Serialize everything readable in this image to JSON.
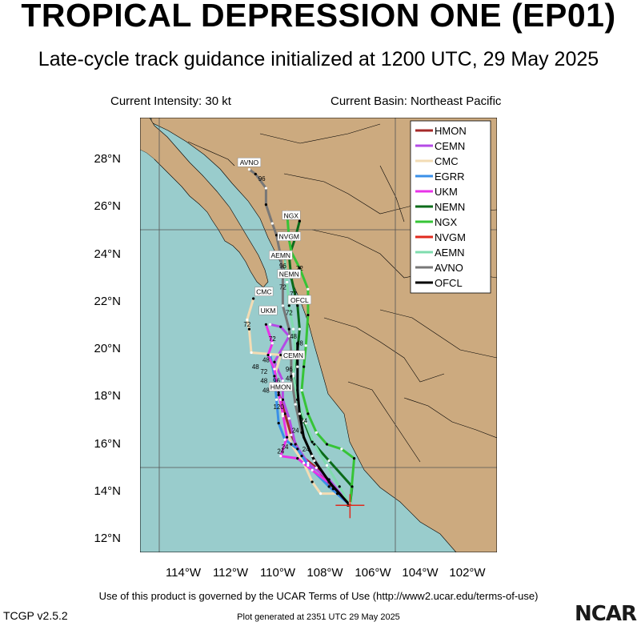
{
  "header": {
    "title": "TROPICAL DEPRESSION ONE (EP01)",
    "subtitle": "Late-cycle track guidance initialized at 1200 UTC, 29 May 2025",
    "intensity": "Current Intensity: 30 kt",
    "basin": "Current Basin: Northeast Pacific"
  },
  "map": {
    "lon_range": [
      -116,
      -99
    ],
    "lat_range": [
      11.5,
      30
    ],
    "lat_ticks": [
      "12°N",
      "14°N",
      "16°N",
      "18°N",
      "20°N",
      "22°N",
      "24°N",
      "26°N",
      "28°N"
    ],
    "lon_ticks": [
      "114°W",
      "112°W",
      "110°W",
      "108°W",
      "106°W",
      "104°W",
      "102°W"
    ],
    "ocean_color": "#99cccc",
    "land_color": "#ccaa7f",
    "gridlines": true,
    "storm_position": {
      "lon": -106.0,
      "lat": 13.5,
      "label": "current position marker"
    }
  },
  "legend": {
    "placement": "top-right",
    "items": [
      {
        "name": "HMON",
        "color": "#a52a2a"
      },
      {
        "name": "CEMN",
        "color": "#b44be6"
      },
      {
        "name": "CMC",
        "color": "#f3dcb4"
      },
      {
        "name": "EGRR",
        "color": "#3a8fe8"
      },
      {
        "name": "UKM",
        "color": "#e833e8"
      },
      {
        "name": "NEMN",
        "color": "#0b6b1a"
      },
      {
        "name": "NGX",
        "color": "#36c436"
      },
      {
        "name": "NVGM",
        "color": "#e02a1e"
      },
      {
        "name": "AEMN",
        "color": "#7fdcae"
      },
      {
        "name": "AVNO",
        "color": "#777777"
      },
      {
        "name": "OFCL",
        "color": "#000000"
      }
    ]
  },
  "tracks": [
    {
      "name": "HMON",
      "color": "#a52a2a",
      "pts": [
        [
          -106.0,
          13.5
        ],
        [
          -106.8,
          14.2
        ],
        [
          -107.6,
          15.1
        ],
        [
          -108.3,
          15.6
        ],
        [
          -108.8,
          16.5
        ],
        [
          -109.1,
          17.4
        ],
        [
          -109.3,
          18.0
        ],
        [
          -109.5,
          18.6
        ]
      ]
    },
    {
      "name": "CEMN",
      "color": "#b44be6",
      "pts": [
        [
          -106.0,
          13.5
        ],
        [
          -107.0,
          14.6
        ],
        [
          -108.0,
          15.3
        ],
        [
          -108.6,
          16.1
        ],
        [
          -108.9,
          17.2
        ],
        [
          -109.2,
          18.0
        ],
        [
          -109.2,
          18.8
        ],
        [
          -109.6,
          19.6
        ],
        [
          -108.9,
          20.7
        ],
        [
          -109.3,
          21.1
        ],
        [
          -109.8,
          21.2
        ]
      ]
    },
    {
      "name": "CMC",
      "color": "#f3dcb4",
      "pts": [
        [
          -106.0,
          13.5
        ],
        [
          -106.6,
          14.0
        ],
        [
          -107.4,
          14.0
        ],
        [
          -107.8,
          14.5
        ],
        [
          -108.2,
          15.3
        ],
        [
          -108.8,
          16.1
        ],
        [
          -109.2,
          17.3
        ],
        [
          -109.4,
          18.2
        ],
        [
          -109.6,
          19.0
        ],
        [
          -109.3,
          19.9
        ],
        [
          -110.7,
          20.0
        ],
        [
          -110.8,
          21.0
        ],
        [
          -110.9,
          21.4
        ],
        [
          -110.6,
          22.3
        ]
      ]
    },
    {
      "name": "EGRR",
      "color": "#3a8fe8",
      "pts": [
        [
          -106.0,
          13.5
        ],
        [
          -107.0,
          14.3
        ],
        [
          -108.0,
          15.2
        ],
        [
          -108.5,
          15.9
        ],
        [
          -109.1,
          16.3
        ],
        [
          -109.4,
          17.0
        ],
        [
          -109.5,
          18.0
        ],
        [
          -109.6,
          19.0
        ],
        [
          -109.8,
          19.9
        ]
      ]
    },
    {
      "name": "UKM",
      "color": "#e833e8",
      "pts": [
        [
          -106.0,
          13.5
        ],
        [
          -106.9,
          14.4
        ],
        [
          -107.8,
          15.0
        ],
        [
          -108.5,
          15.5
        ],
        [
          -109.3,
          15.6
        ],
        [
          -109.0,
          16.4
        ],
        [
          -109.2,
          17.4
        ],
        [
          -109.4,
          18.3
        ],
        [
          -109.6,
          19.3
        ],
        [
          -109.9,
          19.9
        ],
        [
          -109.7,
          20.4
        ],
        [
          -110.0,
          21.2
        ]
      ]
    },
    {
      "name": "NEMN",
      "color": "#0b6b1a",
      "pts": [
        [
          -106.0,
          13.5
        ],
        [
          -105.9,
          14.3
        ],
        [
          -107.0,
          15.4
        ],
        [
          -107.8,
          16.2
        ],
        [
          -108.2,
          17.1
        ],
        [
          -108.5,
          18.0
        ],
        [
          -108.7,
          19.1
        ],
        [
          -108.5,
          20.1
        ],
        [
          -108.4,
          21.0
        ],
        [
          -108.5,
          22.0
        ],
        [
          -108.8,
          23.2
        ],
        [
          -108.9,
          24.1
        ],
        [
          -108.6,
          24.9
        ],
        [
          -108.4,
          25.6
        ]
      ]
    },
    {
      "name": "NGX",
      "color": "#36c436",
      "pts": [
        [
          -106.0,
          13.5
        ],
        [
          -105.8,
          15.5
        ],
        [
          -106.4,
          15.9
        ],
        [
          -107.1,
          16.1
        ],
        [
          -107.6,
          16.6
        ],
        [
          -108.0,
          17.4
        ],
        [
          -108.3,
          18.4
        ],
        [
          -108.2,
          19.4
        ],
        [
          -108.1,
          20.3
        ],
        [
          -108.0,
          21.6
        ],
        [
          -108.0,
          22.7
        ],
        [
          -108.4,
          23.6
        ],
        [
          -108.8,
          24.3
        ],
        [
          -108.9,
          24.8
        ],
        [
          -109.0,
          26.0
        ]
      ]
    },
    {
      "name": "NVGM",
      "color": "#e02a1e",
      "pts": [
        [
          -106.0,
          13.5
        ],
        [
          -106.1,
          13.5
        ],
        [
          -106.0,
          13.6
        ]
      ]
    },
    {
      "name": "AEMN",
      "color": "#7fdcae",
      "pts": [
        [
          -106.0,
          13.5
        ],
        [
          -106.5,
          14.3
        ],
        [
          -107.1,
          15.2
        ],
        [
          -107.7,
          16.1
        ],
        [
          -108.1,
          17.0
        ],
        [
          -108.5,
          18.0
        ],
        [
          -108.7,
          19.0
        ],
        [
          -108.6,
          20.0
        ],
        [
          -108.7,
          21.0
        ],
        [
          -108.9,
          22.0
        ],
        [
          -109.0,
          23.0
        ],
        [
          -109.1,
          24.0
        ]
      ]
    },
    {
      "name": "AVNO",
      "color": "#777777",
      "pts": [
        [
          -106.0,
          13.5
        ],
        [
          -107.0,
          14.5
        ],
        [
          -107.8,
          15.6
        ],
        [
          -108.3,
          16.6
        ],
        [
          -108.6,
          17.8
        ],
        [
          -108.8,
          19.0
        ],
        [
          -108.8,
          20.0
        ],
        [
          -108.9,
          21.0
        ],
        [
          -109.2,
          22.0
        ],
        [
          -109.2,
          23.2
        ],
        [
          -109.3,
          24.1
        ],
        [
          -109.5,
          25.0
        ],
        [
          -109.7,
          25.5
        ],
        [
          -110.0,
          26.3
        ],
        [
          -110.0,
          27.0
        ],
        [
          -110.5,
          27.6
        ],
        [
          -110.8,
          27.8
        ]
      ]
    },
    {
      "name": "OFCL",
      "color": "#000000",
      "pts": [
        [
          -106.0,
          13.5
        ],
        [
          -106.9,
          14.4
        ],
        [
          -107.7,
          15.4
        ],
        [
          -108.2,
          16.4
        ],
        [
          -108.4,
          17.4
        ],
        [
          -108.5,
          18.4
        ],
        [
          -108.5,
          19.4
        ],
        [
          -108.5,
          20.4
        ]
      ]
    }
  ],
  "track_labels": [
    {
      "text": "AVNO",
      "lon": -110.8,
      "lat": 28.05
    },
    {
      "text": "NGX",
      "lon": -108.8,
      "lat": 25.8
    },
    {
      "text": "NVGM",
      "lon": -108.9,
      "lat": 24.9
    },
    {
      "text": "AEMN",
      "lon": -109.3,
      "lat": 24.1
    },
    {
      "text": "NEMN",
      "lon": -108.9,
      "lat": 23.3
    },
    {
      "text": "CMC",
      "lon": -110.1,
      "lat": 22.55
    },
    {
      "text": "OFCL",
      "lon": -108.4,
      "lat": 22.2
    },
    {
      "text": "UKM",
      "lon": -109.9,
      "lat": 21.75
    },
    {
      "text": "CEMN",
      "lon": -108.7,
      "lat": 19.85
    },
    {
      "text": "HMON",
      "lon": -109.3,
      "lat": 18.5
    }
  ],
  "hour_labels": [
    {
      "text": "96",
      "lon": -110.2,
      "lat": 27.3
    },
    {
      "text": "96",
      "lon": -109.2,
      "lat": 23.6
    },
    {
      "text": "72",
      "lon": -108.4,
      "lat": 23.5
    },
    {
      "text": "72",
      "lon": -109.2,
      "lat": 22.7
    },
    {
      "text": "72",
      "lon": -108.7,
      "lat": 22.4
    },
    {
      "text": "72",
      "lon": -108.9,
      "lat": 21.6
    },
    {
      "text": "72",
      "lon": -110.9,
      "lat": 21.1
    },
    {
      "text": "72",
      "lon": -109.7,
      "lat": 20.5
    },
    {
      "text": "48",
      "lon": -108.7,
      "lat": 20.6
    },
    {
      "text": "48",
      "lon": -108.4,
      "lat": 20.3
    },
    {
      "text": "48",
      "lon": -110.0,
      "lat": 19.6
    },
    {
      "text": "48",
      "lon": -110.5,
      "lat": 19.3
    },
    {
      "text": "72",
      "lon": -110.1,
      "lat": 19.1
    },
    {
      "text": "96",
      "lon": -109.5,
      "lat": 18.7
    },
    {
      "text": "96",
      "lon": -108.9,
      "lat": 19.2
    },
    {
      "text": "48",
      "lon": -110.1,
      "lat": 18.7
    },
    {
      "text": "48",
      "lon": -108.9,
      "lat": 18.8
    },
    {
      "text": "48",
      "lon": -110.0,
      "lat": 18.3
    },
    {
      "text": "120",
      "lon": -109.4,
      "lat": 17.6
    },
    {
      "text": "24",
      "lon": -108.2,
      "lat": 17.0
    },
    {
      "text": "24",
      "lon": -108.6,
      "lat": 16.6
    },
    {
      "text": "24",
      "lon": -109.1,
      "lat": 15.9
    },
    {
      "text": "24",
      "lon": -109.3,
      "lat": 15.7
    },
    {
      "text": "24",
      "lon": -108.1,
      "lat": 15.8
    }
  ],
  "footer": {
    "terms": "Use of this product is governed by the UCAR Terms of Use (http://www2.ucar.edu/terms-of-use)",
    "version": "TCGP v2.5.2",
    "generated": "Plot generated at 2351 UTC  29 May 2025",
    "logo": "NCAR"
  }
}
